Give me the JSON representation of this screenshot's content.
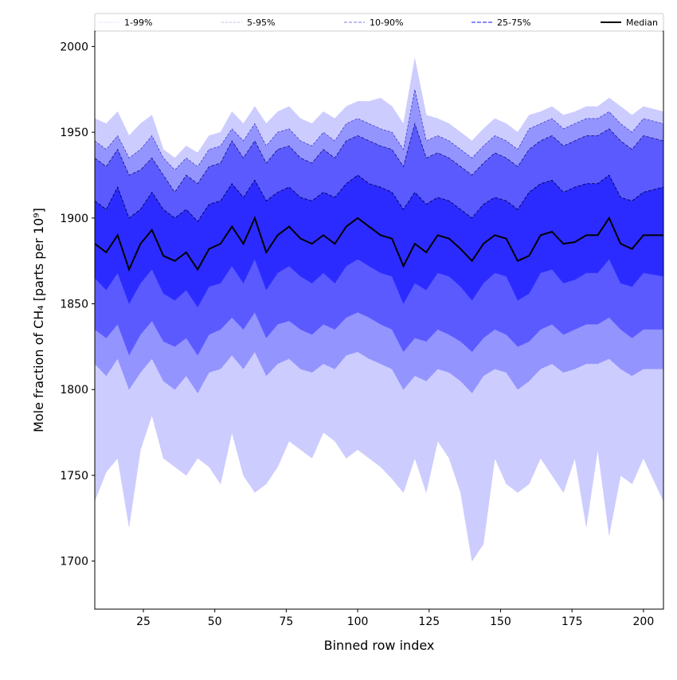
{
  "chart_data": {
    "type": "area",
    "title": "",
    "xlabel": "Binned row index",
    "ylabel": "Mole fraction of CH₄ [parts per 10⁹]",
    "xlim": [
      8,
      207
    ],
    "ylim": [
      1672,
      2009
    ],
    "xticks": [
      25,
      50,
      75,
      100,
      125,
      150,
      175,
      200
    ],
    "yticks": [
      1700,
      1750,
      1800,
      1850,
      1900,
      1950,
      2000
    ],
    "grid": false,
    "legend_position": "top",
    "legend": [
      {
        "label": "1-99%",
        "color": "#d8d8ff"
      },
      {
        "label": "5-95%",
        "color": "#a8a8f0"
      },
      {
        "label": "10-90%",
        "color": "#7777ee"
      },
      {
        "label": "25-75%",
        "color": "#4444ff"
      },
      {
        "label": "Median",
        "color": "#000000"
      }
    ],
    "band_fills": {
      "1-99": "#ccccff",
      "5-95": "#9494ff",
      "10-90": "#5a5aff",
      "25-75": "#2b2bff"
    },
    "x": [
      8,
      12,
      16,
      20,
      24,
      28,
      32,
      36,
      40,
      44,
      48,
      52,
      56,
      60,
      64,
      68,
      72,
      76,
      80,
      84,
      88,
      92,
      96,
      100,
      104,
      108,
      112,
      116,
      120,
      124,
      128,
      132,
      136,
      140,
      144,
      148,
      152,
      156,
      160,
      164,
      168,
      172,
      176,
      180,
      184,
      188,
      192,
      196,
      200,
      204
    ],
    "series": [
      {
        "name": "p1",
        "values": [
          1735,
          1752,
          1760,
          1720,
          1765,
          1785,
          1760,
          1755,
          1750,
          1760,
          1755,
          1745,
          1775,
          1750,
          1740,
          1745,
          1755,
          1770,
          1765,
          1760,
          1775,
          1770,
          1760,
          1765,
          1760,
          1755,
          1748,
          1740,
          1760,
          1740,
          1770,
          1760,
          1740,
          1700,
          1710,
          1760,
          1745,
          1740,
          1745,
          1760,
          1750,
          1740,
          1760,
          1720,
          1765,
          1715,
          1750,
          1745,
          1760,
          1735
        ]
      },
      {
        "name": "p5",
        "values": [
          1815,
          1808,
          1818,
          1800,
          1810,
          1818,
          1805,
          1800,
          1808,
          1798,
          1810,
          1812,
          1820,
          1812,
          1822,
          1808,
          1815,
          1818,
          1812,
          1810,
          1815,
          1812,
          1820,
          1822,
          1818,
          1815,
          1812,
          1800,
          1808,
          1805,
          1812,
          1810,
          1805,
          1798,
          1808,
          1812,
          1810,
          1800,
          1805,
          1812,
          1815,
          1810,
          1812,
          1815,
          1815,
          1818,
          1812,
          1808,
          1812,
          1812
        ]
      },
      {
        "name": "p10",
        "values": [
          1835,
          1830,
          1838,
          1820,
          1832,
          1840,
          1828,
          1825,
          1830,
          1820,
          1832,
          1835,
          1842,
          1835,
          1845,
          1830,
          1838,
          1840,
          1835,
          1832,
          1838,
          1835,
          1842,
          1845,
          1842,
          1838,
          1835,
          1822,
          1830,
          1828,
          1835,
          1832,
          1828,
          1822,
          1830,
          1835,
          1832,
          1825,
          1828,
          1835,
          1838,
          1832,
          1835,
          1838,
          1838,
          1842,
          1835,
          1830,
          1835,
          1835
        ]
      },
      {
        "name": "p25",
        "values": [
          1865,
          1858,
          1868,
          1850,
          1862,
          1870,
          1856,
          1852,
          1858,
          1848,
          1860,
          1862,
          1872,
          1862,
          1876,
          1858,
          1868,
          1872,
          1866,
          1862,
          1868,
          1862,
          1872,
          1876,
          1872,
          1868,
          1866,
          1850,
          1862,
          1858,
          1868,
          1866,
          1860,
          1852,
          1862,
          1868,
          1866,
          1852,
          1856,
          1868,
          1870,
          1862,
          1864,
          1868,
          1868,
          1876,
          1862,
          1860,
          1868,
          1866
        ]
      },
      {
        "name": "Median",
        "values": [
          1885,
          1880,
          1890,
          1870,
          1885,
          1893,
          1878,
          1875,
          1880,
          1870,
          1882,
          1885,
          1895,
          1885,
          1900,
          1880,
          1890,
          1895,
          1888,
          1885,
          1890,
          1885,
          1895,
          1900,
          1895,
          1890,
          1888,
          1872,
          1885,
          1880,
          1890,
          1888,
          1882,
          1875,
          1885,
          1890,
          1888,
          1875,
          1878,
          1890,
          1892,
          1885,
          1886,
          1890,
          1890,
          1900,
          1885,
          1882,
          1890,
          1890
        ]
      },
      {
        "name": "p75",
        "values": [
          1910,
          1905,
          1918,
          1900,
          1905,
          1915,
          1905,
          1900,
          1905,
          1898,
          1908,
          1910,
          1920,
          1912,
          1922,
          1910,
          1915,
          1918,
          1912,
          1910,
          1915,
          1912,
          1920,
          1925,
          1920,
          1918,
          1915,
          1905,
          1915,
          1908,
          1912,
          1910,
          1905,
          1900,
          1908,
          1912,
          1910,
          1905,
          1915,
          1920,
          1922,
          1915,
          1918,
          1920,
          1920,
          1925,
          1912,
          1910,
          1915,
          1918
        ]
      },
      {
        "name": "p90",
        "values": [
          1935,
          1930,
          1940,
          1925,
          1928,
          1935,
          1925,
          1915,
          1925,
          1920,
          1930,
          1932,
          1945,
          1935,
          1945,
          1932,
          1940,
          1942,
          1935,
          1932,
          1940,
          1935,
          1945,
          1948,
          1945,
          1942,
          1940,
          1930,
          1955,
          1935,
          1938,
          1935,
          1930,
          1925,
          1932,
          1938,
          1935,
          1930,
          1940,
          1945,
          1948,
          1942,
          1945,
          1948,
          1948,
          1952,
          1945,
          1940,
          1948,
          1945
        ]
      },
      {
        "name": "p95",
        "values": [
          1945,
          1940,
          1948,
          1935,
          1940,
          1948,
          1935,
          1928,
          1935,
          1930,
          1940,
          1942,
          1952,
          1945,
          1955,
          1942,
          1950,
          1952,
          1945,
          1942,
          1950,
          1945,
          1955,
          1958,
          1955,
          1952,
          1950,
          1940,
          1975,
          1945,
          1948,
          1945,
          1940,
          1935,
          1942,
          1948,
          1945,
          1940,
          1952,
          1955,
          1958,
          1952,
          1955,
          1958,
          1958,
          1962,
          1955,
          1950,
          1958,
          1955
        ]
      },
      {
        "name": "p99",
        "values": [
          1958,
          1955,
          1962,
          1948,
          1955,
          1960,
          1940,
          1935,
          1942,
          1938,
          1948,
          1950,
          1962,
          1955,
          1965,
          1955,
          1962,
          1965,
          1958,
          1955,
          1962,
          1958,
          1965,
          1968,
          1968,
          1970,
          1965,
          1955,
          1993,
          1960,
          1958,
          1955,
          1950,
          1945,
          1952,
          1958,
          1955,
          1950,
          1960,
          1962,
          1965,
          1960,
          1962,
          1965,
          1965,
          1970,
          1965,
          1960,
          1965,
          1962
        ]
      }
    ]
  }
}
